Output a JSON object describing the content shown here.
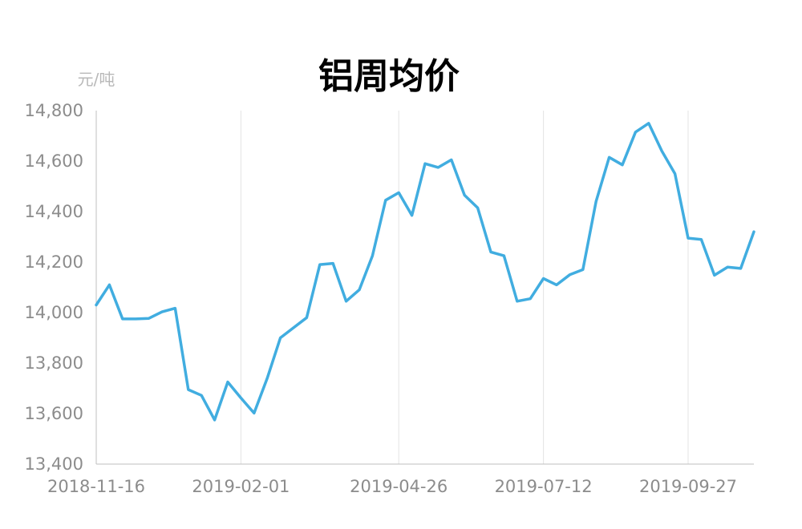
{
  "chart_data": {
    "type": "line",
    "title": "铝周均价",
    "ylabel": "元/吨",
    "xlabel": "",
    "ylim": [
      13400,
      14800
    ],
    "yticks": [
      13400,
      13600,
      13800,
      14000,
      14200,
      14400,
      14600,
      14800
    ],
    "ytick_labels": [
      "13,400",
      "13,600",
      "13,800",
      "14,000",
      "14,200",
      "14,400",
      "14,600",
      "14,800"
    ],
    "xtick_labels": [
      "2018-11-16",
      "2019-02-01",
      "2019-04-26",
      "2019-07-12",
      "2019-09-27"
    ],
    "x": [
      "2018-11-16",
      "2018-11-23",
      "2018-11-30",
      "2018-12-07",
      "2018-12-14",
      "2018-12-21",
      "2018-12-28",
      "2019-01-04",
      "2019-01-11",
      "2019-01-18",
      "2019-01-25",
      "2019-02-01",
      "2019-02-08",
      "2019-02-15",
      "2019-02-22",
      "2019-03-01",
      "2019-03-08",
      "2019-03-15",
      "2019-03-22",
      "2019-03-29",
      "2019-04-05",
      "2019-04-12",
      "2019-04-19",
      "2019-04-26",
      "2019-05-03",
      "2019-05-10",
      "2019-05-17",
      "2019-05-24",
      "2019-05-31",
      "2019-06-07",
      "2019-06-14",
      "2019-06-21",
      "2019-06-28",
      "2019-07-05",
      "2019-07-12",
      "2019-07-19",
      "2019-07-26",
      "2019-08-02",
      "2019-08-09",
      "2019-08-16",
      "2019-08-23",
      "2019-08-30",
      "2019-09-06",
      "2019-09-13",
      "2019-09-20",
      "2019-09-27",
      "2019-10-04",
      "2019-10-11",
      "2019-10-18",
      "2019-10-25",
      "2019-11-01"
    ],
    "series": [
      {
        "color": "#41ade0",
        "values": [
          14030,
          14110,
          13975,
          13975,
          13977,
          14003,
          14017,
          13695,
          13672,
          13575,
          13725,
          13662,
          13602,
          13740,
          13900,
          13940,
          13980,
          14190,
          14195,
          14045,
          14090,
          14225,
          14445,
          14475,
          14385,
          14590,
          14575,
          14605,
          14465,
          14415,
          14240,
          14225,
          14045,
          14055,
          14135,
          14110,
          14150,
          14170,
          14440,
          14615,
          14585,
          14715,
          14750,
          14640,
          14550,
          14295,
          14290,
          14148,
          14180,
          14175,
          14320
        ]
      }
    ]
  }
}
